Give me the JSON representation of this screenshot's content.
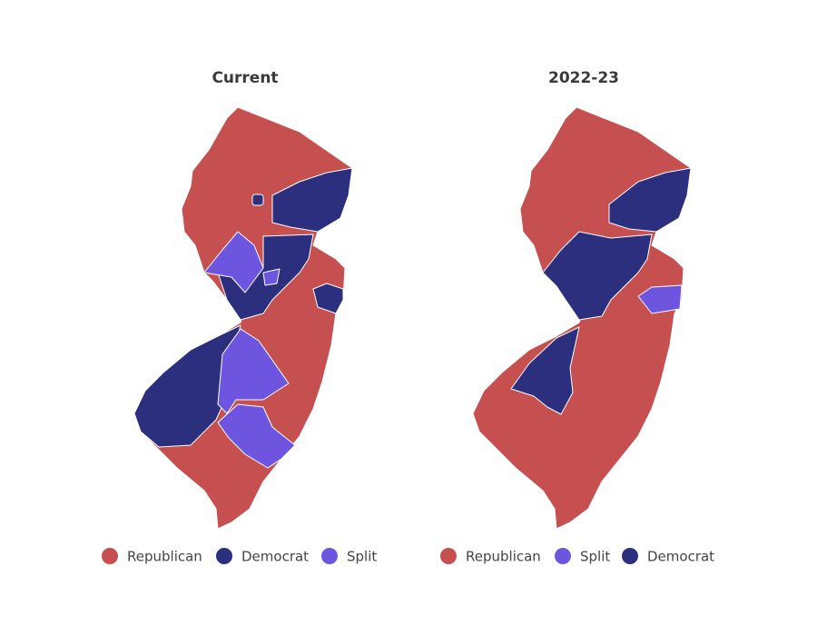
{
  "maps": [
    {
      "title": "Current",
      "legend": [
        {
          "name": "Republican",
          "color": "#c5504f"
        },
        {
          "name": "Democrat",
          "color": "#2b2f7e"
        },
        {
          "name": "Split",
          "color": "#6e55df"
        }
      ]
    },
    {
      "title": "2022-23",
      "legend": [
        {
          "name": "Republican",
          "color": "#c5504f"
        },
        {
          "name": "Split",
          "color": "#6e55df"
        },
        {
          "name": "Democrat",
          "color": "#2b2f7e"
        }
      ]
    }
  ]
}
